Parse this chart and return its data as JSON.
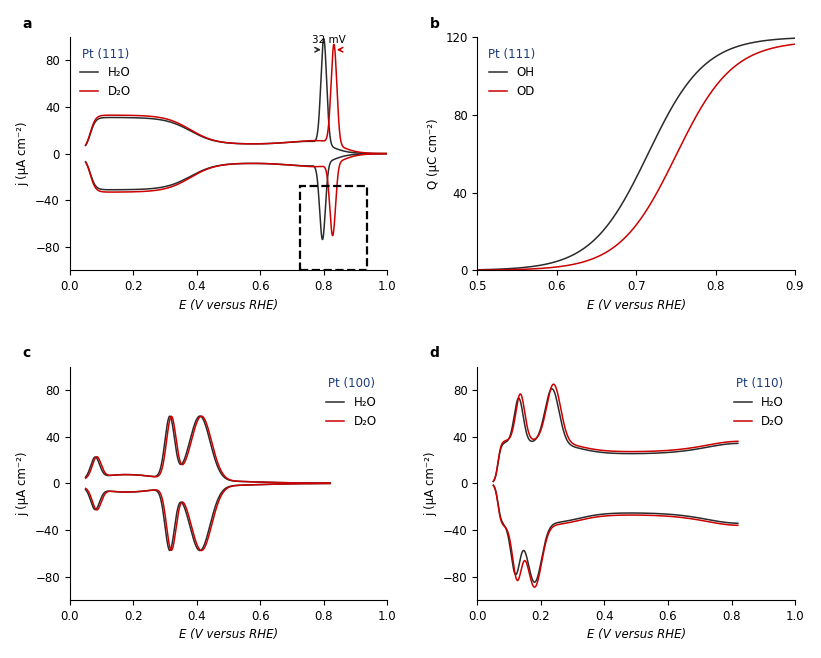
{
  "fig_width": 8.21,
  "fig_height": 6.58,
  "panel_a": {
    "xlabel": "E (V versus RHE)",
    "ylabel": "j (μA cm⁻²)",
    "xlim": [
      0,
      1.0
    ],
    "ylim": [
      -100,
      100
    ],
    "xticks": [
      0,
      0.2,
      0.4,
      0.6,
      0.8,
      1.0
    ],
    "yticks": [
      -80,
      -40,
      0,
      40,
      80
    ],
    "legend_title": "Pt (111)",
    "legend_labels": [
      "H₂O",
      "D₂O"
    ]
  },
  "panel_b": {
    "xlabel": "E (V versus RHE)",
    "ylabel": "Q (μC cm⁻²)",
    "xlim": [
      0.5,
      0.9
    ],
    "ylim": [
      0,
      120
    ],
    "xticks": [
      0.5,
      0.6,
      0.7,
      0.8,
      0.9
    ],
    "yticks": [
      0,
      40,
      80,
      120
    ],
    "legend_title": "Pt (111)",
    "legend_labels": [
      "OH",
      "OD"
    ]
  },
  "panel_c": {
    "xlabel": "E (V versus RHE)",
    "ylabel": "j (μA cm⁻²)",
    "xlim": [
      0,
      1.0
    ],
    "ylim": [
      -100,
      100
    ],
    "xticks": [
      0,
      0.2,
      0.4,
      0.6,
      0.8,
      1.0
    ],
    "yticks": [
      -80,
      -40,
      0,
      40,
      80
    ],
    "legend_title": "Pt (100)",
    "legend_labels": [
      "H₂O",
      "D₂O"
    ]
  },
  "panel_d": {
    "xlabel": "E (V versus RHE)",
    "ylabel": "j (μA cm⁻²)",
    "xlim": [
      0,
      1.0
    ],
    "ylim": [
      -100,
      100
    ],
    "xticks": [
      0,
      0.2,
      0.4,
      0.6,
      0.8,
      1.0
    ],
    "yticks": [
      -80,
      -40,
      0,
      40,
      80
    ],
    "legend_title": "Pt (110)",
    "legend_labels": [
      "H₂O",
      "D₂O"
    ]
  },
  "black_color": "#2b2b2b",
  "red_color": "#cc0000",
  "title_color": "#1a3a7a"
}
